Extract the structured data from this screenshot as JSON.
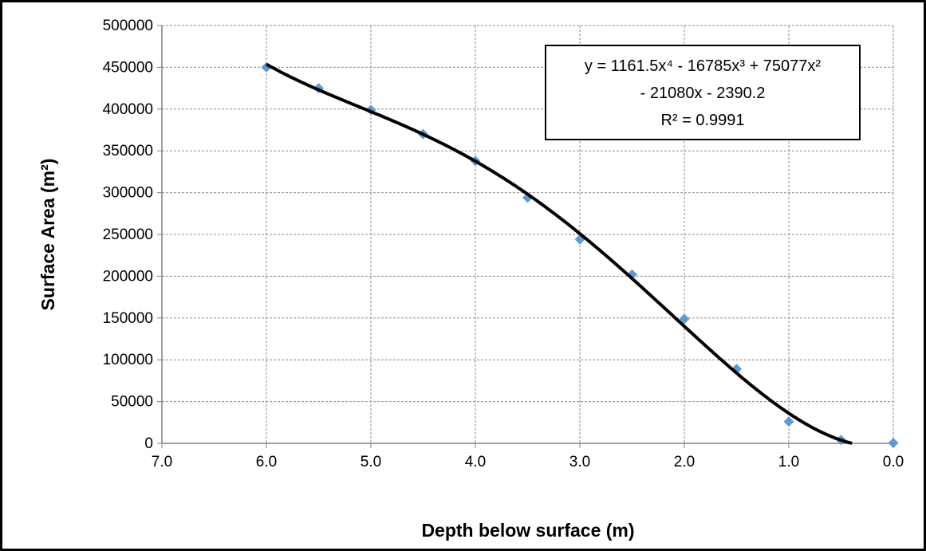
{
  "chart_data": {
    "type": "scatter",
    "xlabel": "Depth below surface (m)",
    "ylabel": "Surface Area (m²)",
    "x_axis": {
      "min": 0,
      "max": 7,
      "reversed": true,
      "ticks": [
        7,
        6,
        5,
        4,
        3,
        2,
        1,
        0
      ],
      "tick_labels": [
        "7.0",
        "6.0",
        "5.0",
        "4.0",
        "3.0",
        "2.0",
        "1.0",
        "0.0"
      ]
    },
    "y_axis": {
      "min": 0,
      "max": 500000,
      "ticks": [
        0,
        50000,
        100000,
        150000,
        200000,
        250000,
        300000,
        350000,
        400000,
        450000,
        500000
      ],
      "tick_labels": [
        "0",
        "50000",
        "100000",
        "150000",
        "200000",
        "250000",
        "300000",
        "350000",
        "400000",
        "450000",
        "500000"
      ]
    },
    "grid": true,
    "series": [
      {
        "marker": "diamond",
        "color": "#5B9BD5",
        "points": [
          {
            "x": 6.0,
            "y": 450000
          },
          {
            "x": 5.5,
            "y": 425000
          },
          {
            "x": 5.0,
            "y": 399000
          },
          {
            "x": 4.5,
            "y": 370000
          },
          {
            "x": 4.0,
            "y": 338000
          },
          {
            "x": 3.5,
            "y": 294000
          },
          {
            "x": 3.0,
            "y": 244000
          },
          {
            "x": 2.5,
            "y": 202000
          },
          {
            "x": 2.0,
            "y": 149000
          },
          {
            "x": 1.5,
            "y": 89000
          },
          {
            "x": 1.0,
            "y": 26000
          },
          {
            "x": 0.5,
            "y": 4000
          },
          {
            "x": 0.0,
            "y": 500
          }
        ]
      }
    ],
    "trendline": {
      "type": "polynomial",
      "order": 4,
      "coefficients": [
        1161.5,
        -16785,
        75077,
        -21080,
        -2390.2
      ],
      "color": "#000000"
    },
    "annotation": {
      "equation_line1": "y = 1161.5x⁴ - 16785x³ + 75077x²",
      "equation_line2": "- 21080x - 2390.2",
      "r_squared": "R² = 0.9991"
    }
  }
}
